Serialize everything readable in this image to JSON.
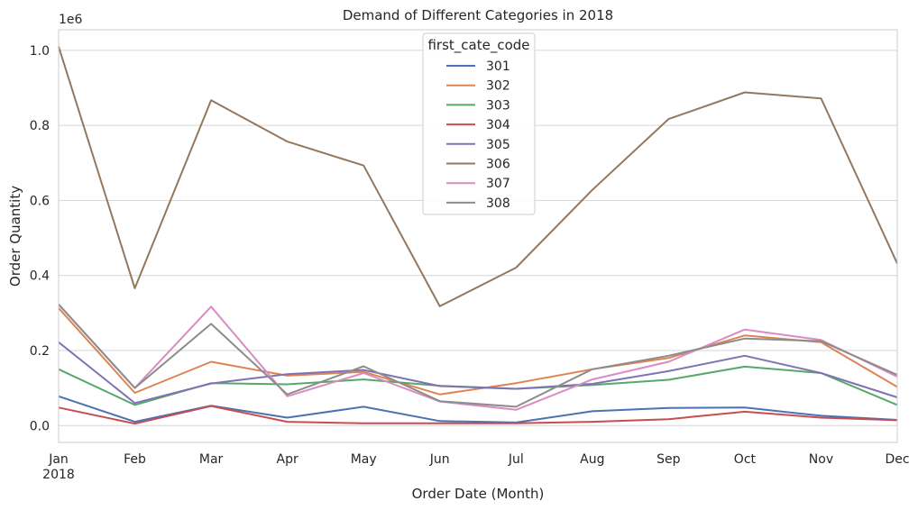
{
  "chart_data": {
    "type": "line",
    "title": "Demand of Different Categories in 2018",
    "xlabel": "Order Date (Month)",
    "ylabel": "Order Quantity",
    "y_scale_label": "1e6",
    "x_year_label": "2018",
    "categories": [
      "Jan",
      "Feb",
      "Mar",
      "Apr",
      "May",
      "Jun",
      "Jul",
      "Aug",
      "Sep",
      "Oct",
      "Nov",
      "Dec"
    ],
    "y_ticks": [
      0.0,
      0.2,
      0.4,
      0.6,
      0.8,
      1.0
    ],
    "y_tick_labels": [
      "0.0",
      "0.2",
      "0.4",
      "0.6",
      "0.8",
      "1.0"
    ],
    "ylim": [
      -0.045,
      1.055
    ],
    "grid": true,
    "legend_title": "first_cate_code",
    "legend_position": "top-center",
    "series": [
      {
        "name": "301",
        "color": "#4c72b0",
        "values": [
          0.078,
          0.01,
          0.053,
          0.021,
          0.05,
          0.012,
          0.008,
          0.038,
          0.047,
          0.048,
          0.026,
          0.015
        ]
      },
      {
        "name": "302",
        "color": "#dd8452",
        "values": [
          0.313,
          0.087,
          0.17,
          0.133,
          0.143,
          0.083,
          0.113,
          0.15,
          0.18,
          0.24,
          0.222,
          0.103
        ]
      },
      {
        "name": "303",
        "color": "#55a868",
        "values": [
          0.15,
          0.055,
          0.113,
          0.11,
          0.123,
          0.106,
          0.098,
          0.108,
          0.122,
          0.157,
          0.14,
          0.055
        ]
      },
      {
        "name": "304",
        "color": "#c44e52",
        "values": [
          0.048,
          0.005,
          0.052,
          0.01,
          0.006,
          0.006,
          0.006,
          0.01,
          0.017,
          0.037,
          0.021,
          0.014
        ]
      },
      {
        "name": "305",
        "color": "#8172b3",
        "values": [
          0.222,
          0.06,
          0.112,
          0.137,
          0.148,
          0.105,
          0.098,
          0.111,
          0.145,
          0.186,
          0.14,
          0.075
        ]
      },
      {
        "name": "306",
        "color": "#937860",
        "values": [
          1.01,
          0.366,
          0.867,
          0.757,
          0.693,
          0.318,
          0.421,
          0.628,
          0.817,
          0.888,
          0.872,
          0.432
        ]
      },
      {
        "name": "307",
        "color": "#da8bc3",
        "values": [
          0.323,
          0.1,
          0.317,
          0.078,
          0.14,
          0.064,
          0.042,
          0.123,
          0.17,
          0.256,
          0.228,
          0.13
        ]
      },
      {
        "name": "308",
        "color": "#8c8c8c",
        "values": [
          0.323,
          0.1,
          0.271,
          0.083,
          0.158,
          0.065,
          0.05,
          0.15,
          0.186,
          0.232,
          0.225,
          0.135
        ]
      }
    ]
  }
}
